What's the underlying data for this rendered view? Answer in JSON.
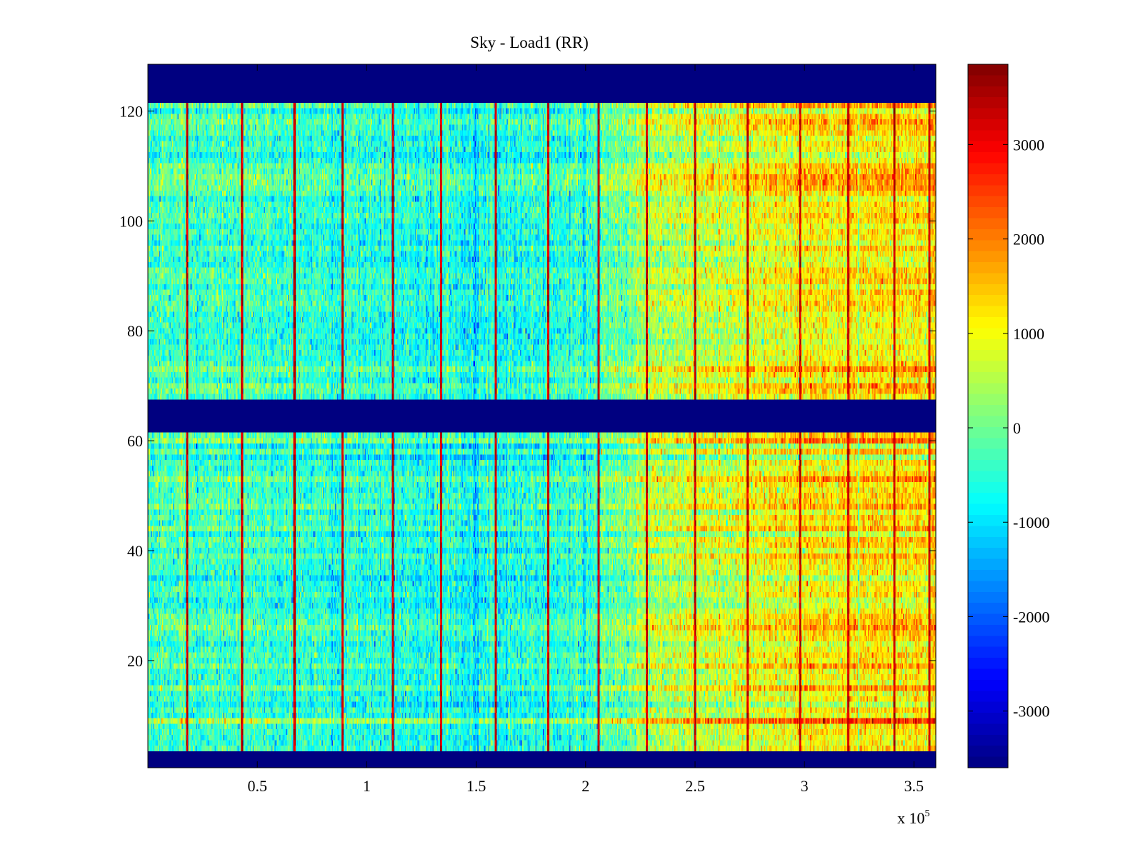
{
  "chart_data": {
    "type": "heatmap",
    "title": "Sky - Load1 (RR)",
    "xlabel": "",
    "ylabel": "",
    "x_exponent_label": "x 10",
    "x_exponent_power": "5",
    "xlim": [
      0,
      3.6
    ],
    "ylim": [
      0.5,
      128.5
    ],
    "x_ticks": [
      0.5,
      1,
      1.5,
      2,
      2.5,
      3,
      3.5
    ],
    "x_tick_labels": [
      "0.5",
      "1",
      "1.5",
      "2",
      "2.5",
      "3",
      "3.5"
    ],
    "y_ticks": [
      20,
      40,
      60,
      80,
      100,
      120
    ],
    "y_tick_labels": [
      "20",
      "40",
      "60",
      "80",
      "100",
      "120"
    ],
    "colormap": "jet",
    "clim": [
      -3600,
      3850
    ],
    "colorbar_ticks": [
      3000,
      2000,
      1000,
      0,
      -1000,
      -2000,
      -3000
    ],
    "colorbar_tick_labels": [
      "3000",
      "2000",
      "1000",
      "0",
      "-1000",
      "-2000",
      "-3000"
    ],
    "masked_row_bands": [
      [
        1,
        3
      ],
      [
        62,
        67
      ],
      [
        122,
        128
      ]
    ],
    "masked_value": -3600,
    "column_trend": {
      "x": [
        0,
        1.0,
        1.5,
        2.0,
        2.25,
        2.7,
        3.0,
        3.6
      ],
      "mean": [
        -300,
        -500,
        -650,
        -450,
        400,
        800,
        1100,
        1250
      ]
    },
    "spike_columns_x": [
      0.18,
      0.43,
      0.67,
      0.89,
      1.12,
      1.34,
      1.59,
      1.83,
      2.06,
      2.28,
      2.5,
      2.74,
      2.98,
      3.2,
      3.41,
      3.57
    ],
    "spike_value": 3300,
    "notable_rows": [
      {
        "row": 9,
        "offset": 1500
      },
      {
        "row": 15,
        "offset": 700
      },
      {
        "row": 19,
        "offset": 600
      },
      {
        "row": 26,
        "offset": 700
      },
      {
        "row": 35,
        "offset": -800
      },
      {
        "row": 39,
        "offset": 500
      },
      {
        "row": 57,
        "offset": -900
      },
      {
        "row": 73,
        "offset": 800
      },
      {
        "row": 104,
        "offset": -400
      }
    ]
  }
}
